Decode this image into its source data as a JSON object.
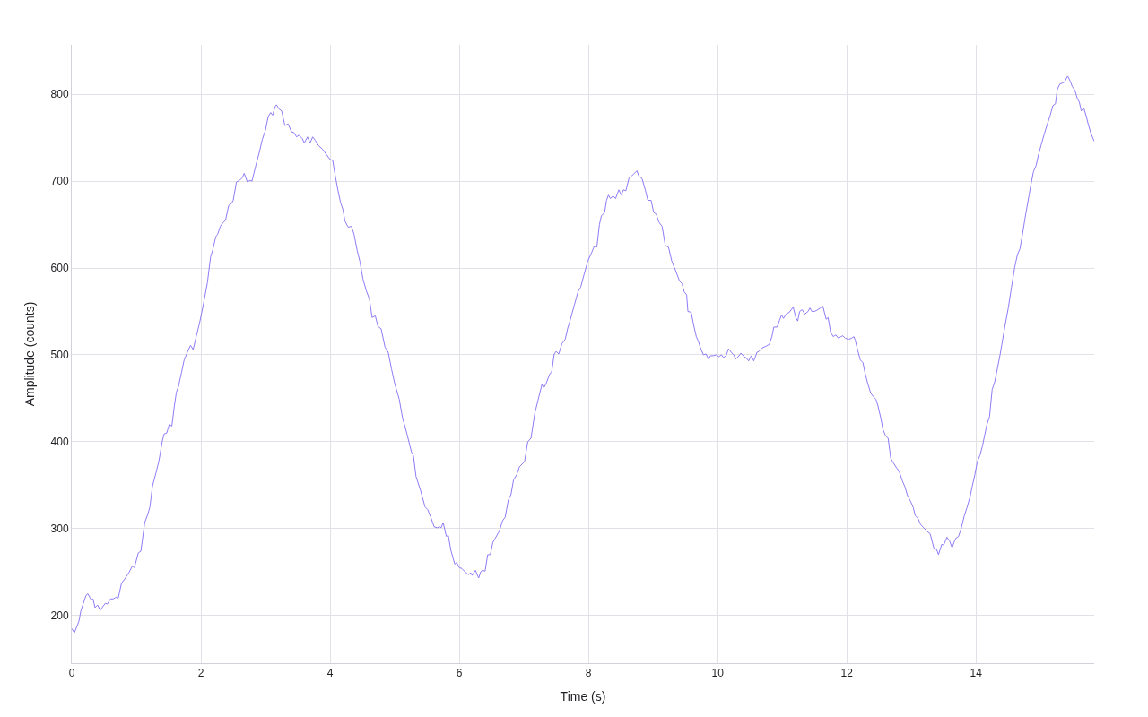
{
  "chart_data": {
    "type": "line",
    "xlabel": "Time (s)",
    "ylabel": "Amplitude (counts)",
    "color": "#8c7cf6",
    "marker": "none",
    "line_style": "solid",
    "grid": true,
    "legend": false,
    "xlim": [
      0,
      15.83
    ],
    "ylim": [
      145,
      857
    ],
    "xticks": [
      0,
      2,
      4,
      6,
      8,
      10,
      12,
      14
    ],
    "yticks": [
      200,
      300,
      400,
      500,
      600,
      700,
      800
    ],
    "x": [
      0,
      0.04,
      0.11,
      0.14,
      0.18,
      0.22,
      0.25,
      0.3,
      0.33,
      0.36,
      0.4,
      0.44,
      0.48,
      0.52,
      0.55,
      0.6,
      0.64,
      0.69,
      0.72,
      0.77,
      0.83,
      0.89,
      0.94,
      0.97,
      1.03,
      1.07,
      1.13,
      1.18,
      1.21,
      1.25,
      1.3,
      1.35,
      1.4,
      1.43,
      1.47,
      1.51,
      1.55,
      1.59,
      1.62,
      1.65,
      1.7,
      1.74,
      1.79,
      1.84,
      1.88,
      1.93,
      1.98,
      2.04,
      2.1,
      2.15,
      2.18,
      2.23,
      2.26,
      2.3,
      2.34,
      2.38,
      2.43,
      2.47,
      2.5,
      2.55,
      2.6,
      2.64,
      2.67,
      2.72,
      2.76,
      2.79,
      2.85,
      2.91,
      2.95,
      3.0,
      3.04,
      3.08,
      3.11,
      3.15,
      3.17,
      3.21,
      3.25,
      3.3,
      3.35,
      3.4,
      3.44,
      3.48,
      3.52,
      3.57,
      3.6,
      3.65,
      3.69,
      3.73,
      3.77,
      3.82,
      3.88,
      3.93,
      4.0,
      4.04,
      4.08,
      4.12,
      4.16,
      4.2,
      4.23,
      4.28,
      4.33,
      4.37,
      4.42,
      4.46,
      4.51,
      4.56,
      4.61,
      4.65,
      4.7,
      4.74,
      4.79,
      4.85,
      4.9,
      4.95,
      5.0,
      5.07,
      5.12,
      5.19,
      5.26,
      5.29,
      5.33,
      5.4,
      5.47,
      5.51,
      5.56,
      5.61,
      5.66,
      5.7,
      5.72,
      5.75,
      5.8,
      5.83,
      5.87,
      5.9,
      5.93,
      5.96,
      6.0,
      6.04,
      6.09,
      6.14,
      6.18,
      6.2,
      6.25,
      6.3,
      6.33,
      6.36,
      6.4,
      6.44,
      6.48,
      6.52,
      6.55,
      6.62,
      6.67,
      6.71,
      6.76,
      6.8,
      6.84,
      6.89,
      6.93,
      7.01,
      7.06,
      7.11,
      7.17,
      7.22,
      7.28,
      7.31,
      7.35,
      7.4,
      7.43,
      7.47,
      7.5,
      7.54,
      7.59,
      7.64,
      7.68,
      7.71,
      7.78,
      7.84,
      7.88,
      7.93,
      7.99,
      8.05,
      8.09,
      8.13,
      8.17,
      8.2,
      8.25,
      8.28,
      8.31,
      8.34,
      8.38,
      8.42,
      8.47,
      8.51,
      8.54,
      8.58,
      8.63,
      8.67,
      8.71,
      8.75,
      8.78,
      8.83,
      8.88,
      8.92,
      8.97,
      9.01,
      9.05,
      9.09,
      9.14,
      9.19,
      9.24,
      9.29,
      9.35,
      9.41,
      9.45,
      9.48,
      9.52,
      9.54,
      9.59,
      9.63,
      9.67,
      9.7,
      9.74,
      9.78,
      9.82,
      9.86,
      9.89,
      9.93,
      9.98,
      10.02,
      10.06,
      10.09,
      10.13,
      10.17,
      10.21,
      10.25,
      10.28,
      10.33,
      10.36,
      10.41,
      10.45,
      10.48,
      10.52,
      10.56,
      10.61,
      10.64,
      10.69,
      10.75,
      10.8,
      10.84,
      10.87,
      10.92,
      10.96,
      10.99,
      11.02,
      11.06,
      11.11,
      11.17,
      11.21,
      11.24,
      11.27,
      11.31,
      11.35,
      11.4,
      11.43,
      11.46,
      11.5,
      11.55,
      11.59,
      11.63,
      11.68,
      11.71,
      11.75,
      11.79,
      11.83,
      11.87,
      11.91,
      11.94,
      11.98,
      12.03,
      12.07,
      12.11,
      12.13,
      12.17,
      12.21,
      12.25,
      12.28,
      12.32,
      12.37,
      12.41,
      12.45,
      12.48,
      12.53,
      12.56,
      12.6,
      12.64,
      12.68,
      12.71,
      12.76,
      12.81,
      12.86,
      12.9,
      12.94,
      12.99,
      13.03,
      13.06,
      13.1,
      13.14,
      13.19,
      13.24,
      13.29,
      13.35,
      13.39,
      13.42,
      13.47,
      13.5,
      13.55,
      13.59,
      13.63,
      13.67,
      13.69,
      13.73,
      13.77,
      13.82,
      13.86,
      13.91,
      13.94,
      13.98,
      14.02,
      14.06,
      14.1,
      14.13,
      14.17,
      14.21,
      14.25,
      14.29,
      14.32,
      14.37,
      14.4,
      14.45,
      14.5,
      14.55,
      14.6,
      14.64,
      14.68,
      14.72,
      14.77,
      14.82,
      14.85,
      14.89,
      14.93,
      14.96,
      15.01,
      15.06,
      15.11,
      15.15,
      15.19,
      15.23,
      15.26,
      15.3,
      15.34,
      15.37,
      15.41,
      15.42,
      15.46,
      15.49,
      15.53,
      15.57,
      15.6,
      15.63,
      15.67,
      15.71,
      15.74,
      15.78,
      15.83
    ],
    "values": [
      185,
      180,
      193,
      205,
      214,
      223,
      225,
      218,
      219,
      209,
      212,
      206,
      210,
      214,
      213,
      219,
      219,
      221,
      220,
      237,
      243,
      250,
      257,
      255,
      272,
      274,
      307,
      317,
      325,
      349,
      363,
      378,
      400,
      409,
      410,
      420,
      418,
      442,
      457,
      463,
      480,
      494,
      503,
      511,
      506,
      522,
      537,
      559,
      583,
      613,
      620,
      636,
      639,
      648,
      652,
      655,
      672,
      674,
      678,
      699,
      701,
      704,
      709,
      699,
      701,
      700,
      718,
      735,
      748,
      759,
      774,
      779,
      776,
      786,
      788,
      783,
      781,
      764,
      766,
      757,
      756,
      751,
      753,
      749,
      744,
      751,
      744,
      751,
      747,
      741,
      737,
      732,
      725,
      724,
      706,
      690,
      676,
      667,
      654,
      647,
      648,
      639,
      620,
      608,
      587,
      574,
      564,
      543,
      545,
      533,
      530,
      509,
      503,
      484,
      467,
      449,
      428,
      409,
      388,
      384,
      360,
      344,
      325,
      322,
      313,
      302,
      301,
      302,
      301,
      307,
      291,
      292,
      275,
      267,
      259,
      261,
      255,
      254,
      250,
      247,
      249,
      246,
      252,
      243,
      250,
      252,
      251,
      270,
      270,
      284,
      288,
      297,
      309,
      313,
      333,
      339,
      356,
      362,
      371,
      377,
      400,
      404,
      433,
      448,
      466,
      462,
      468,
      478,
      480,
      501,
      504,
      501,
      513,
      518,
      531,
      538,
      557,
      573,
      578,
      592,
      608,
      618,
      625,
      624,
      650,
      660,
      664,
      678,
      684,
      680,
      683,
      680,
      690,
      684,
      690,
      689,
      704,
      706,
      709,
      712,
      706,
      703,
      690,
      678,
      678,
      664,
      662,
      653,
      648,
      626,
      624,
      608,
      597,
      585,
      582,
      573,
      569,
      550,
      549,
      534,
      521,
      516,
      507,
      500,
      501,
      495,
      499,
      499,
      500,
      498,
      500,
      497,
      499,
      507,
      503,
      500,
      495,
      499,
      502,
      498,
      496,
      493,
      499,
      493,
      503,
      504,
      508,
      510,
      512,
      521,
      532,
      532,
      540,
      546,
      542,
      547,
      549,
      555,
      543,
      539,
      550,
      552,
      547,
      550,
      554,
      550,
      550,
      552,
      554,
      556,
      541,
      543,
      526,
      521,
      523,
      519,
      521,
      522,
      519,
      518,
      519,
      521,
      517,
      505,
      494,
      491,
      480,
      468,
      456,
      452,
      449,
      442,
      426,
      414,
      407,
      404,
      381,
      377,
      371,
      366,
      355,
      348,
      338,
      331,
      324,
      315,
      312,
      305,
      301,
      297,
      294,
      277,
      276,
      270,
      282,
      281,
      290,
      286,
      278,
      286,
      289,
      291,
      300,
      315,
      324,
      337,
      348,
      361,
      377,
      384,
      395,
      406,
      420,
      429,
      460,
      469,
      480,
      499,
      512,
      534,
      554,
      578,
      601,
      615,
      622,
      639,
      662,
      683,
      696,
      711,
      718,
      728,
      742,
      755,
      767,
      776,
      787,
      789,
      806,
      812,
      813,
      814,
      820,
      821,
      815,
      809,
      805,
      795,
      791,
      781,
      784,
      774,
      765,
      755,
      746
    ]
  }
}
